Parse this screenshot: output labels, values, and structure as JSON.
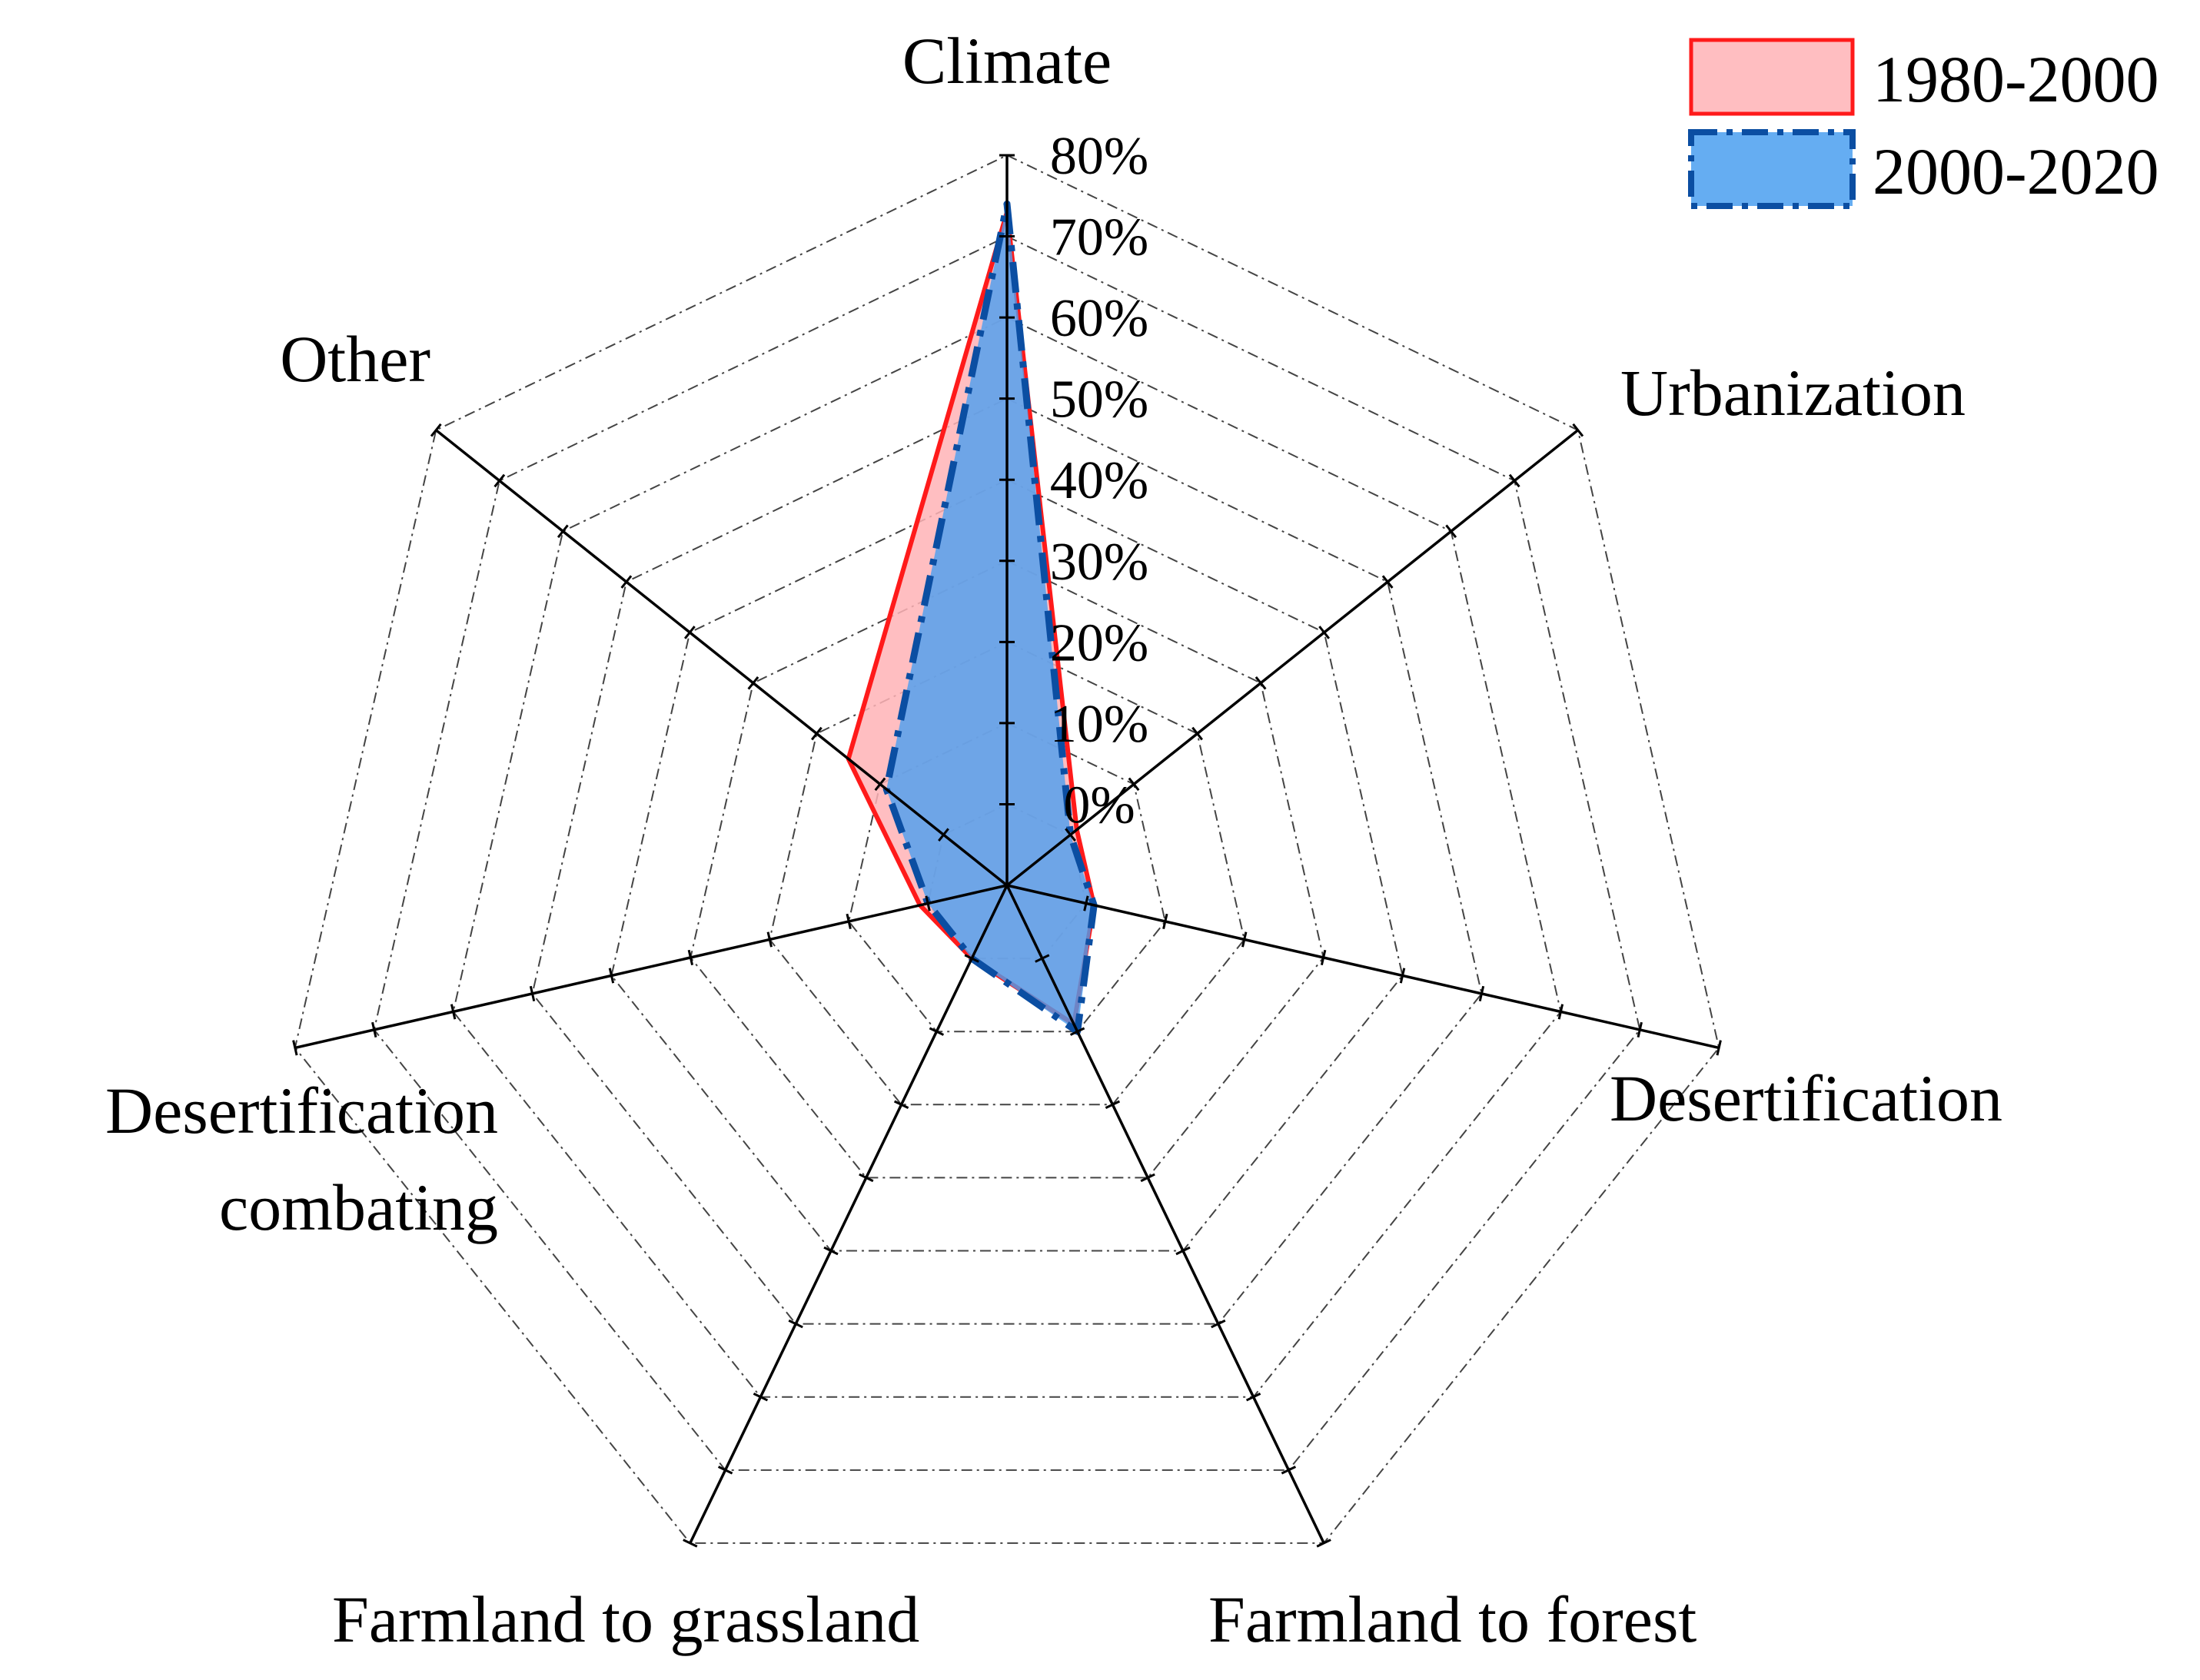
{
  "chart_data": {
    "type": "radar",
    "title": "",
    "axes": [
      "Climate",
      "Urbanization",
      "Desertification",
      "Farmland to forest",
      "Farmland to grassland",
      "Desertification combating",
      "Other"
    ],
    "tick_labels": [
      "0%",
      "10%",
      "20%",
      "30%",
      "40%",
      "50%",
      "60%",
      "70%",
      "80%"
    ],
    "range": [
      -10,
      80
    ],
    "unit": "%",
    "series": [
      {
        "name": "1980-2000",
        "values": [
          73,
          1,
          1,
          9,
          0,
          1,
          15
        ],
        "stroke": "#ff1a1a",
        "fill": "#ffb3b6",
        "line_style": "solid"
      },
      {
        "name": "2000-2020",
        "values": [
          74,
          0,
          1,
          10,
          0,
          0,
          9
        ],
        "stroke": "#0b4ea2",
        "fill": "#4a9ff0",
        "line_style": "dash-dot"
      }
    ],
    "legend_position": "top-right"
  }
}
